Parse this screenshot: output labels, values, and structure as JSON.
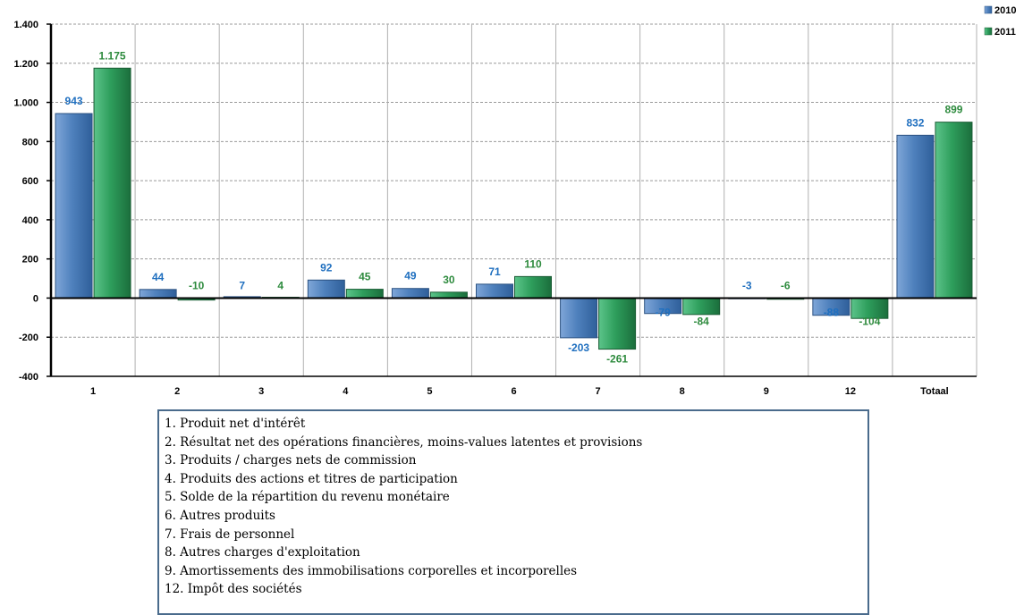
{
  "chart_data": {
    "type": "bar",
    "categories": [
      "1",
      "2",
      "3",
      "4",
      "5",
      "6",
      "7",
      "8",
      "9",
      "12",
      "Totaal"
    ],
    "series": [
      {
        "name": "2010",
        "values": [
          943,
          44,
          7,
          92,
          49,
          71,
          -203,
          -79,
          -3,
          -88,
          832
        ],
        "labels": [
          "943",
          "44",
          "7",
          "92",
          "49",
          "71",
          "-203",
          "-79",
          "-3",
          "-88",
          "832"
        ]
      },
      {
        "name": "2011",
        "values": [
          1175,
          -10,
          4,
          45,
          30,
          110,
          -261,
          -84,
          -6,
          -104,
          899
        ],
        "labels": [
          "1.175",
          "-10",
          "4",
          "45",
          "30",
          "110",
          "-261",
          "-84",
          "-6",
          "-104",
          "899"
        ]
      }
    ],
    "ylim": [
      -400,
      1400
    ],
    "yticks": [
      -400,
      -200,
      0,
      200,
      400,
      600,
      800,
      1000,
      1200,
      1400
    ],
    "ytick_labels": [
      "-400",
      "-200",
      "0",
      "200",
      "400",
      "600",
      "800",
      "1.000",
      "1.200",
      "1.400"
    ],
    "grid": true,
    "legend_position": "top-right",
    "colors": {
      "2010": "#4f81bd",
      "2011": "#2e9e5c",
      "label_2010": "#1f6fbf",
      "label_2011": "#2e8b3e"
    }
  },
  "category_legend": [
    "1. Produit net d'intérêt",
    "2. Résultat net des opérations financières, moins-values latentes et provisions",
    "3. Produits / charges nets de commission",
    "4. Produits des actions et titres de participation",
    "5. Solde de la répartition du revenu monétaire",
    "6. Autres produits",
    "7. Frais de personnel",
    "8. Autres charges d'exploitation",
    "9. Amortissements  des immobilisations corporelles et incorporelles",
    "12. Impôt des sociétés"
  ]
}
